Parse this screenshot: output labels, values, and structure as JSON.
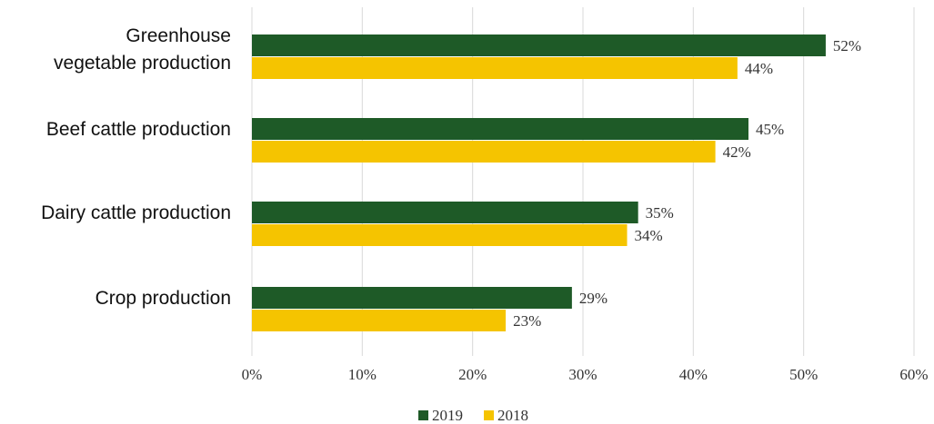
{
  "chart_data": {
    "type": "bar",
    "orientation": "horizontal",
    "categories": [
      [
        "Greenhouse",
        "vegetable production"
      ],
      [
        "Beef cattle production"
      ],
      [
        "Dairy cattle production"
      ],
      [
        "Crop production"
      ]
    ],
    "series": [
      {
        "name": "2019",
        "color": "#1e5a27",
        "values": [
          52,
          45,
          35,
          29
        ],
        "labels": [
          "52%",
          "45%",
          "35%",
          "29%"
        ]
      },
      {
        "name": "2018",
        "color": "#f5c400",
        "values": [
          44,
          42,
          34,
          23
        ],
        "labels": [
          "44%",
          "42%",
          "34%",
          "23%"
        ]
      }
    ],
    "xlim": [
      0,
      60
    ],
    "ticks": [
      0,
      10,
      20,
      30,
      40,
      50,
      60
    ],
    "tick_labels": [
      "0%",
      "10%",
      "20%",
      "30%",
      "40%",
      "50%",
      "60%"
    ],
    "grid": true,
    "legend_position": "bottom",
    "title": "",
    "xlabel": "",
    "ylabel": ""
  }
}
